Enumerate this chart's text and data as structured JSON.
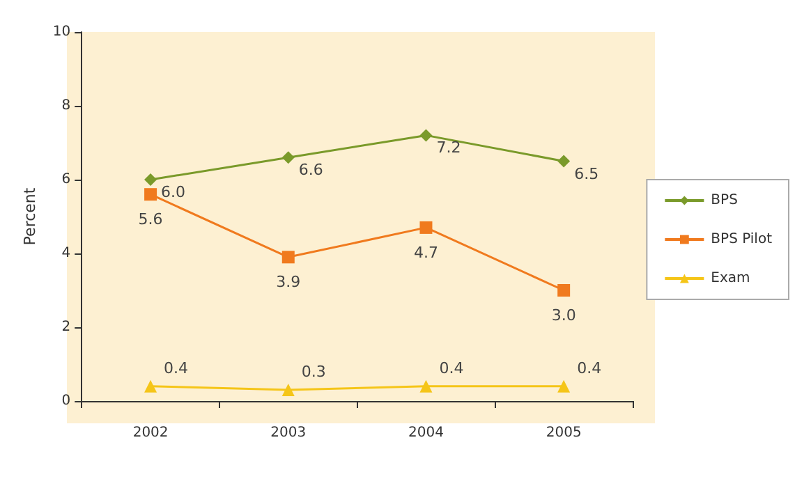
{
  "chart_data": {
    "type": "line",
    "ylabel": "Percent",
    "categories": [
      "2002",
      "2003",
      "2004",
      "2005"
    ],
    "ylim": [
      0,
      10
    ],
    "yticks": [
      0,
      2,
      4,
      6,
      8,
      10
    ],
    "grid": false,
    "legend": "right",
    "series": [
      {
        "name": "BPS",
        "color": "#7a9a2a",
        "marker": "diamond",
        "values": [
          6.0,
          6.6,
          7.2,
          6.5
        ],
        "value_labels": [
          "6.0",
          "6.6",
          "7.2",
          "6.5"
        ]
      },
      {
        "name": "BPS Pilot",
        "color": "#f07a1e",
        "marker": "square",
        "values": [
          5.6,
          3.9,
          4.7,
          3.0
        ],
        "value_labels": [
          "5.6",
          "3.9",
          "4.7",
          "3.0"
        ]
      },
      {
        "name": "Exam",
        "color": "#f5c518",
        "marker": "triangle",
        "values": [
          0.4,
          0.3,
          0.4,
          0.4
        ],
        "value_labels": [
          "0.4",
          "0.3",
          "0.4",
          "0.4"
        ]
      }
    ]
  }
}
